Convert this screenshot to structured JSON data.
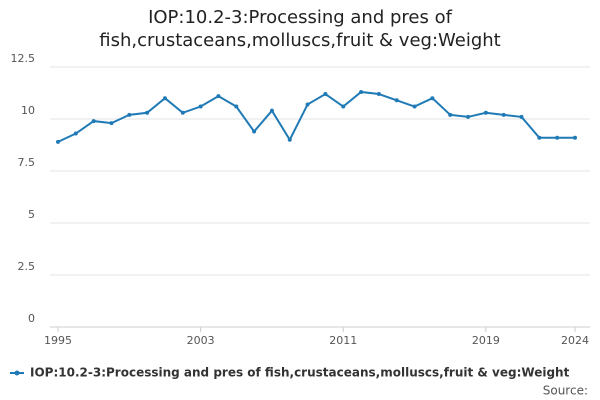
{
  "chart_data": {
    "type": "line",
    "title": "IOP:10.2-3:Processing and pres of fish,crustaceans,molluscs,fruit & veg:Weight",
    "x": [
      1995,
      1996,
      1997,
      1998,
      1999,
      2000,
      2001,
      2002,
      2003,
      2004,
      2005,
      2006,
      2007,
      2008,
      2009,
      2010,
      2011,
      2012,
      2013,
      2014,
      2015,
      2016,
      2017,
      2018,
      2019,
      2020,
      2021,
      2022,
      2023,
      2024
    ],
    "series": [
      {
        "name": "IOP:10.2-3:Processing and pres of fish,crustaceans,molluscs,fruit & veg:Weight",
        "color": "#1f7ab5",
        "values": [
          8.9,
          9.3,
          9.9,
          9.8,
          10.2,
          10.3,
          11.0,
          10.3,
          10.6,
          11.1,
          10.6,
          9.4,
          10.4,
          9.0,
          10.7,
          11.2,
          10.6,
          11.3,
          11.2,
          10.9,
          10.6,
          11.0,
          10.2,
          10.1,
          10.3,
          10.2,
          10.1,
          9.1,
          9.1,
          9.1
        ]
      }
    ],
    "xlim": [
      1995,
      2024
    ],
    "xticks": [
      1995,
      2003,
      2011,
      2019,
      2024
    ],
    "ylim": [
      0,
      12.5
    ],
    "yticks": [
      0,
      2.5,
      5,
      7.5,
      10,
      12.5
    ],
    "grid": true,
    "legend": "bottom",
    "source_label": "Source:"
  }
}
